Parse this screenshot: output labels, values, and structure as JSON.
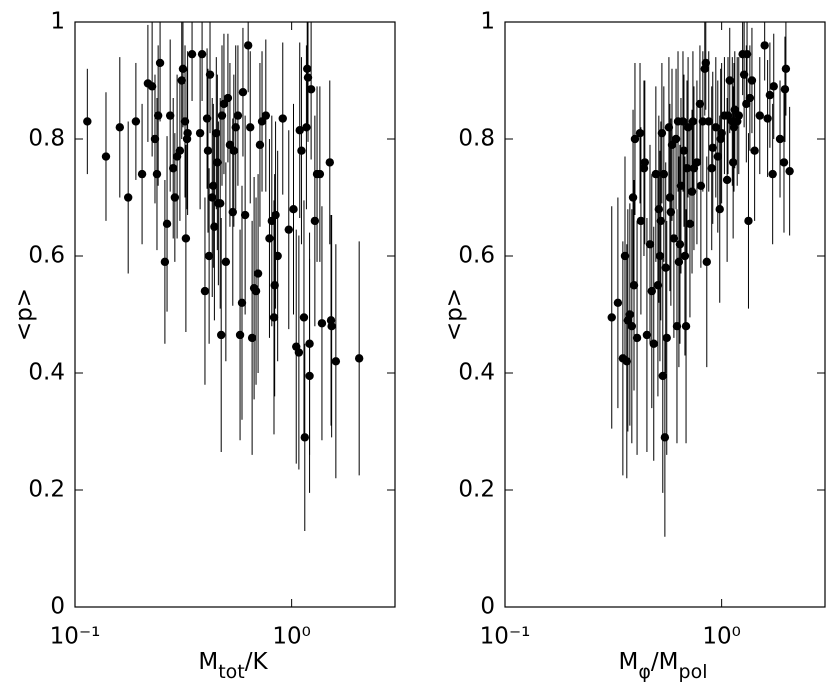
{
  "chart_data": [
    {
      "type": "scatter",
      "xscale": "log",
      "color": "#000000",
      "xlabel": [
        {
          "text": "M"
        },
        {
          "text": "tot",
          "sub": true
        },
        {
          "text": "/K"
        }
      ],
      "ylabel": "<p>",
      "xlim": [
        0.1,
        3
      ],
      "ylim": [
        0,
        1
      ],
      "xticks": [
        {
          "value": 0.1,
          "label": "10⁻¹"
        },
        {
          "value": 1,
          "label": "10⁰"
        }
      ],
      "yticks": [
        0,
        0.2,
        0.4,
        0.6,
        0.8,
        1
      ],
      "x": [
        0.114,
        0.139,
        0.161,
        0.176,
        0.191,
        0.204,
        0.217,
        0.227,
        0.234,
        0.239,
        0.242,
        0.247,
        0.26,
        0.266,
        0.275,
        0.284,
        0.289,
        0.296,
        0.305,
        0.311,
        0.315,
        0.322,
        0.325,
        0.329,
        0.331,
        0.347,
        0.378,
        0.386,
        0.398,
        0.407,
        0.411,
        0.416,
        0.42,
        0.43,
        0.435,
        0.44,
        0.449,
        0.454,
        0.459,
        0.468,
        0.473,
        0.477,
        0.487,
        0.497,
        0.508,
        0.519,
        0.535,
        0.541,
        0.552,
        0.565,
        0.578,
        0.59,
        0.596,
        0.61,
        0.63,
        0.644,
        0.657,
        0.671,
        0.685,
        0.7,
        0.714,
        0.73,
        0.76,
        0.79,
        0.81,
        0.829,
        0.835,
        0.843,
        0.862,
        0.91,
        0.97,
        1.02,
        1.05,
        1.08,
        1.09,
        1.11,
        1.14,
        1.15,
        1.17,
        1.18,
        1.19,
        1.21,
        1.21,
        1.23,
        1.28,
        1.31,
        1.35,
        1.38,
        1.5,
        1.52,
        1.53,
        1.6,
        2.05
      ],
      "y": [
        0.83,
        0.77,
        0.82,
        0.7,
        0.83,
        0.74,
        0.895,
        0.89,
        0.8,
        0.74,
        0.84,
        0.93,
        0.59,
        0.655,
        0.84,
        0.75,
        0.7,
        0.77,
        0.78,
        0.9,
        0.92,
        0.83,
        0.63,
        0.8,
        0.81,
        0.945,
        0.81,
        0.945,
        0.54,
        0.835,
        0.78,
        0.6,
        0.91,
        0.7,
        0.72,
        0.65,
        0.81,
        0.76,
        0.69,
        0.69,
        0.465,
        0.84,
        0.86,
        0.59,
        0.87,
        0.79,
        0.675,
        0.78,
        0.82,
        0.84,
        0.465,
        0.52,
        0.88,
        0.67,
        0.96,
        0.82,
        0.46,
        0.545,
        0.54,
        0.57,
        0.79,
        0.83,
        0.84,
        0.63,
        0.66,
        0.495,
        0.55,
        0.67,
        0.6,
        0.835,
        0.645,
        0.68,
        0.445,
        0.435,
        0.815,
        0.78,
        0.495,
        0.29,
        0.82,
        0.92,
        0.905,
        0.45,
        0.395,
        0.885,
        0.66,
        0.74,
        0.74,
        0.485,
        0.76,
        0.49,
        0.48,
        0.42,
        0.425
      ],
      "errors": [
        0.09,
        0.11,
        0.12,
        0.13,
        0.1,
        0.12,
        0.1,
        0.12,
        0.11,
        0.13,
        0.12,
        0.1,
        0.14,
        0.15,
        0.13,
        0.12,
        0.11,
        0.14,
        0.12,
        0.1,
        0.1,
        0.13,
        0.16,
        0.12,
        0.14,
        0.08,
        0.13,
        0.08,
        0.16,
        0.12,
        0.14,
        0.15,
        0.1,
        0.17,
        0.14,
        0.16,
        0.13,
        0.15,
        0.14,
        0.18,
        0.2,
        0.12,
        0.12,
        0.17,
        0.11,
        0.14,
        0.16,
        0.13,
        0.14,
        0.12,
        0.18,
        0.2,
        0.11,
        0.17,
        0.08,
        0.13,
        0.2,
        0.19,
        0.16,
        0.17,
        0.14,
        0.12,
        0.13,
        0.17,
        0.18,
        0.2,
        0.19,
        0.16,
        0.18,
        0.13,
        0.17,
        0.18,
        0.2,
        0.2,
        0.15,
        0.16,
        0.2,
        0.16,
        0.14,
        0.1,
        0.11,
        0.19,
        0.2,
        0.12,
        0.18,
        0.15,
        0.15,
        0.2,
        0.14,
        0.18,
        0.19,
        0.2,
        0.2
      ]
    },
    {
      "type": "scatter",
      "xscale": "log",
      "color": "#000000",
      "xlabel": [
        {
          "text": "M"
        },
        {
          "text": "φ",
          "sub": true
        },
        {
          "text": "/M"
        },
        {
          "text": "pol",
          "sub": true
        }
      ],
      "ylabel": "<p>",
      "xlim": [
        0.1,
        3
      ],
      "ylim": [
        0,
        1
      ],
      "xticks": [
        {
          "value": 0.1,
          "label": "10⁻¹"
        },
        {
          "value": 1,
          "label": "10⁰"
        }
      ],
      "yticks": [
        0,
        0.2,
        0.4,
        0.6,
        0.8,
        1
      ],
      "x": [
        0.311,
        0.332,
        0.35,
        0.358,
        0.365,
        0.369,
        0.377,
        0.385,
        0.39,
        0.394,
        0.398,
        0.407,
        0.42,
        0.424,
        0.438,
        0.442,
        0.452,
        0.467,
        0.476,
        0.486,
        0.497,
        0.508,
        0.513,
        0.519,
        0.524,
        0.53,
        0.535,
        0.541,
        0.547,
        0.552,
        0.558,
        0.571,
        0.577,
        0.583,
        0.59,
        0.602,
        0.616,
        0.622,
        0.629,
        0.635,
        0.642,
        0.649,
        0.663,
        0.67,
        0.677,
        0.685,
        0.692,
        0.7,
        0.714,
        0.73,
        0.737,
        0.745,
        0.769,
        0.794,
        0.802,
        0.819,
        0.836,
        0.845,
        0.854,
        0.872,
        0.9,
        0.91,
        0.94,
        0.96,
        0.98,
        0.99,
        1.0,
        1.03,
        1.06,
        1.07,
        1.09,
        1.12,
        1.13,
        1.14,
        1.15,
        1.18,
        1.2,
        1.25,
        1.27,
        1.3,
        1.31,
        1.33,
        1.35,
        1.38,
        1.42,
        1.5,
        1.58,
        1.63,
        1.67,
        1.72,
        1.74,
        1.86,
        1.94,
        1.96,
        1.98,
        2.06
      ],
      "y": [
        0.495,
        0.52,
        0.425,
        0.6,
        0.42,
        0.49,
        0.5,
        0.48,
        0.7,
        0.55,
        0.8,
        0.46,
        0.81,
        0.66,
        0.75,
        0.76,
        0.465,
        0.62,
        0.54,
        0.45,
        0.74,
        0.55,
        0.68,
        0.6,
        0.66,
        0.81,
        0.395,
        0.74,
        0.29,
        0.58,
        0.46,
        0.82,
        0.7,
        0.675,
        0.79,
        0.63,
        0.8,
        0.48,
        0.83,
        0.59,
        0.62,
        0.72,
        0.83,
        0.78,
        0.6,
        0.48,
        0.75,
        0.82,
        0.655,
        0.71,
        0.83,
        0.75,
        0.76,
        0.86,
        0.72,
        0.83,
        0.92,
        0.93,
        0.59,
        0.83,
        0.75,
        0.785,
        0.82,
        0.77,
        0.68,
        0.8,
        0.81,
        0.84,
        0.73,
        0.84,
        0.9,
        0.83,
        0.76,
        0.82,
        0.85,
        0.83,
        0.84,
        0.945,
        0.91,
        0.86,
        0.945,
        0.66,
        0.87,
        0.9,
        0.78,
        0.84,
        0.96,
        0.835,
        0.875,
        0.74,
        0.89,
        0.8,
        0.76,
        0.885,
        0.92,
        0.745
      ],
      "errors": [
        0.19,
        0.18,
        0.2,
        0.17,
        0.2,
        0.19,
        0.19,
        0.2,
        0.15,
        0.18,
        0.13,
        0.2,
        0.12,
        0.16,
        0.15,
        0.14,
        0.2,
        0.17,
        0.2,
        0.2,
        0.15,
        0.19,
        0.16,
        0.18,
        0.17,
        0.12,
        0.2,
        0.15,
        0.17,
        0.18,
        0.2,
        0.12,
        0.16,
        0.16,
        0.13,
        0.17,
        0.12,
        0.2,
        0.12,
        0.18,
        0.17,
        0.15,
        0.12,
        0.13,
        0.17,
        0.2,
        0.15,
        0.12,
        0.16,
        0.14,
        0.12,
        0.14,
        0.14,
        0.1,
        0.14,
        0.12,
        0.08,
        0.08,
        0.18,
        0.12,
        0.14,
        0.13,
        0.12,
        0.13,
        0.16,
        0.12,
        0.12,
        0.1,
        0.14,
        0.1,
        0.09,
        0.11,
        0.13,
        0.11,
        0.1,
        0.11,
        0.1,
        0.07,
        0.09,
        0.1,
        0.07,
        0.15,
        0.09,
        0.09,
        0.12,
        0.1,
        0.06,
        0.1,
        0.09,
        0.12,
        0.09,
        0.1,
        0.12,
        0.09,
        0.08,
        0.11
      ]
    }
  ]
}
